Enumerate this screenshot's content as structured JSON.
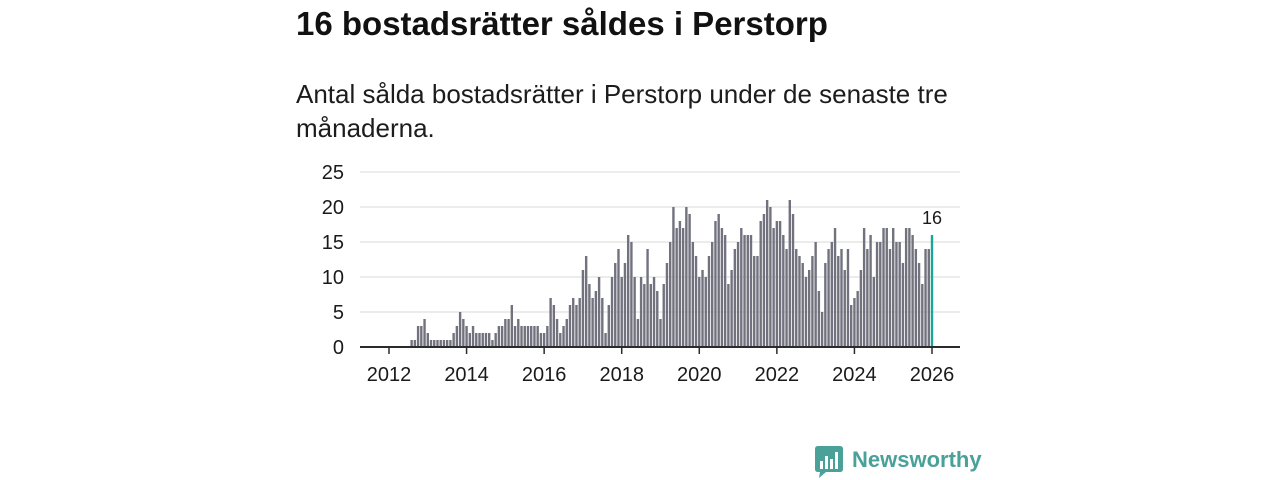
{
  "chart_data": {
    "type": "bar",
    "title": "16 bostadsrätter såldes i Perstorp",
    "subtitle": "Antal sålda bostadsrätter i Perstorp under de senaste tre månaderna.",
    "xlabel": "",
    "ylabel": "",
    "ylim": [
      0,
      25
    ],
    "y_ticks": [
      0,
      5,
      10,
      15,
      20,
      25
    ],
    "x_ticks": [
      "2012",
      "2014",
      "2016",
      "2018",
      "2020",
      "2022",
      "2024",
      "2026"
    ],
    "grid": "horizontal",
    "x": [
      "2012-08",
      "2012-09",
      "2012-10",
      "2012-11",
      "2012-12",
      "2013-01",
      "2013-02",
      "2013-03",
      "2013-04",
      "2013-05",
      "2013-06",
      "2013-07",
      "2013-08",
      "2013-09",
      "2013-10",
      "2013-11",
      "2013-12",
      "2014-01",
      "2014-02",
      "2014-03",
      "2014-04",
      "2014-05",
      "2014-06",
      "2014-07",
      "2014-08",
      "2014-09",
      "2014-10",
      "2014-11",
      "2014-12",
      "2015-01",
      "2015-02",
      "2015-03",
      "2015-04",
      "2015-05",
      "2015-06",
      "2015-07",
      "2015-08",
      "2015-09",
      "2015-10",
      "2015-11",
      "2015-12",
      "2016-01",
      "2016-02",
      "2016-03",
      "2016-04",
      "2016-05",
      "2016-06",
      "2016-07",
      "2016-08",
      "2016-09",
      "2016-10",
      "2016-11",
      "2016-12",
      "2017-01",
      "2017-02",
      "2017-03",
      "2017-04",
      "2017-05",
      "2017-06",
      "2017-07",
      "2017-08",
      "2017-09",
      "2017-10",
      "2017-11",
      "2017-12",
      "2018-01",
      "2018-02",
      "2018-03",
      "2018-04",
      "2018-05",
      "2018-06",
      "2018-07",
      "2018-08",
      "2018-09",
      "2018-10",
      "2018-11",
      "2018-12",
      "2019-01",
      "2019-02",
      "2019-03",
      "2019-04",
      "2019-05",
      "2019-06",
      "2019-07",
      "2019-08",
      "2019-09",
      "2019-10",
      "2019-11",
      "2019-12",
      "2020-01",
      "2020-02",
      "2020-03",
      "2020-04",
      "2020-05",
      "2020-06",
      "2020-07",
      "2020-08",
      "2020-09",
      "2020-10",
      "2020-11",
      "2020-12",
      "2021-01",
      "2021-02",
      "2021-03",
      "2021-04",
      "2021-05",
      "2021-06",
      "2021-07",
      "2021-08",
      "2021-09",
      "2021-10",
      "2021-11",
      "2021-12",
      "2022-01",
      "2022-02",
      "2022-03",
      "2022-04",
      "2022-05",
      "2022-06",
      "2022-07",
      "2022-08",
      "2022-09",
      "2022-10",
      "2022-11",
      "2022-12",
      "2023-01",
      "2023-02",
      "2023-03",
      "2023-04",
      "2023-05",
      "2023-06",
      "2023-07",
      "2023-08",
      "2023-09",
      "2023-10",
      "2023-11",
      "2023-12",
      "2024-01",
      "2024-02",
      "2024-03",
      "2024-04",
      "2024-05",
      "2024-06",
      "2024-07",
      "2024-08",
      "2024-09",
      "2024-10",
      "2024-11",
      "2024-12",
      "2025-01",
      "2025-02",
      "2025-03",
      "2025-04",
      "2025-05",
      "2025-06",
      "2025-07",
      "2025-08",
      "2025-09",
      "2025-10",
      "2025-11",
      "2025-12",
      "2026-01"
    ],
    "values": [
      1,
      1,
      3,
      3,
      4,
      2,
      1,
      1,
      1,
      1,
      1,
      1,
      1,
      2,
      3,
      5,
      4,
      3,
      2,
      3,
      2,
      2,
      2,
      2,
      2,
      1,
      2,
      3,
      3,
      4,
      4,
      6,
      3,
      4,
      3,
      3,
      3,
      3,
      3,
      3,
      2,
      2,
      3,
      7,
      6,
      4,
      2,
      3,
      4,
      6,
      7,
      6,
      7,
      11,
      13,
      9,
      7,
      8,
      10,
      7,
      2,
      6,
      10,
      12,
      14,
      10,
      12,
      16,
      15,
      10,
      4,
      10,
      9,
      14,
      9,
      10,
      8,
      4,
      9,
      12,
      15,
      20,
      17,
      18,
      17,
      20,
      19,
      15,
      13,
      10,
      11,
      10,
      13,
      15,
      18,
      19,
      17,
      16,
      9,
      11,
      14,
      15,
      17,
      16,
      16,
      16,
      13,
      13,
      18,
      19,
      21,
      20,
      17,
      18,
      18,
      16,
      14,
      21,
      19,
      14,
      13,
      12,
      10,
      11,
      13,
      15,
      8,
      5,
      12,
      14,
      15,
      17,
      13,
      14,
      11,
      14,
      6,
      7,
      8,
      11,
      17,
      14,
      16,
      10,
      15,
      15,
      17,
      17,
      14,
      17,
      15,
      15,
      12,
      17,
      17,
      16,
      14,
      12,
      9,
      14,
      14,
      16
    ],
    "highlight": {
      "x": "2026-01",
      "label": "16"
    }
  },
  "branding": {
    "logo_text": "Newsworthy",
    "logo_icon": "bar-chart-speech-bubble-icon"
  },
  "colors": {
    "bar": "#72727f",
    "highlight": "#1aa598",
    "brand": "#4aa199",
    "gridline": "#d9d9d9",
    "axis": "#2b2b2b",
    "text": "#1a1a1a"
  }
}
